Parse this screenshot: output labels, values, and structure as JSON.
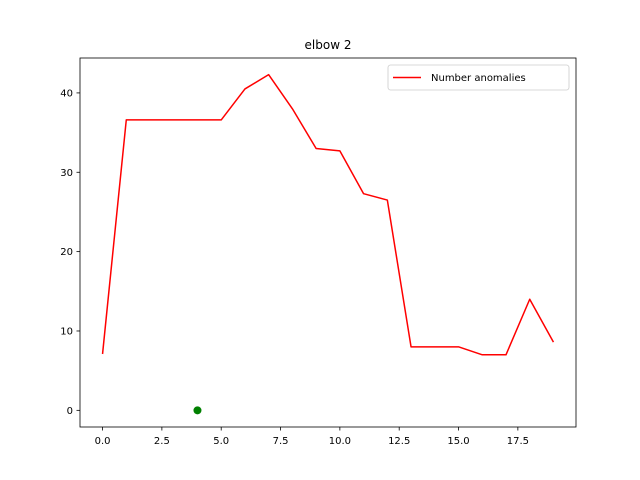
{
  "chart_data": {
    "type": "line",
    "title": "elbow 2",
    "xlabel": "",
    "ylabel": "",
    "xlim": [
      -0.95,
      19.95
    ],
    "ylim": [
      -2.1,
      44.4
    ],
    "xticks": [
      0.0,
      2.5,
      5.0,
      7.5,
      10.0,
      12.5,
      15.0,
      17.5
    ],
    "xtick_labels": [
      "0.0",
      "2.5",
      "5.0",
      "7.5",
      "10.0",
      "12.5",
      "15.0",
      "17.5"
    ],
    "yticks": [
      0,
      10,
      20,
      30,
      40
    ],
    "ytick_labels": [
      "0",
      "10",
      "20",
      "30",
      "40"
    ],
    "grid": false,
    "legend_position": "top-right",
    "series": [
      {
        "name": "Number anomalies",
        "kind": "line",
        "color": "#ff0000",
        "x": [
          0,
          1,
          2,
          3,
          4,
          5,
          6,
          7,
          8,
          9,
          10,
          11,
          12,
          13,
          14,
          15,
          16,
          17,
          18,
          19
        ],
        "y": [
          7.1,
          36.6,
          36.6,
          36.6,
          36.6,
          36.6,
          40.5,
          42.3,
          38.0,
          33.0,
          32.7,
          27.3,
          26.5,
          8.0,
          8.0,
          8.0,
          7.0,
          7.0,
          14.0,
          8.6
        ]
      },
      {
        "kind": "point",
        "color": "#008000",
        "x": [
          4
        ],
        "y": [
          0
        ]
      }
    ]
  }
}
